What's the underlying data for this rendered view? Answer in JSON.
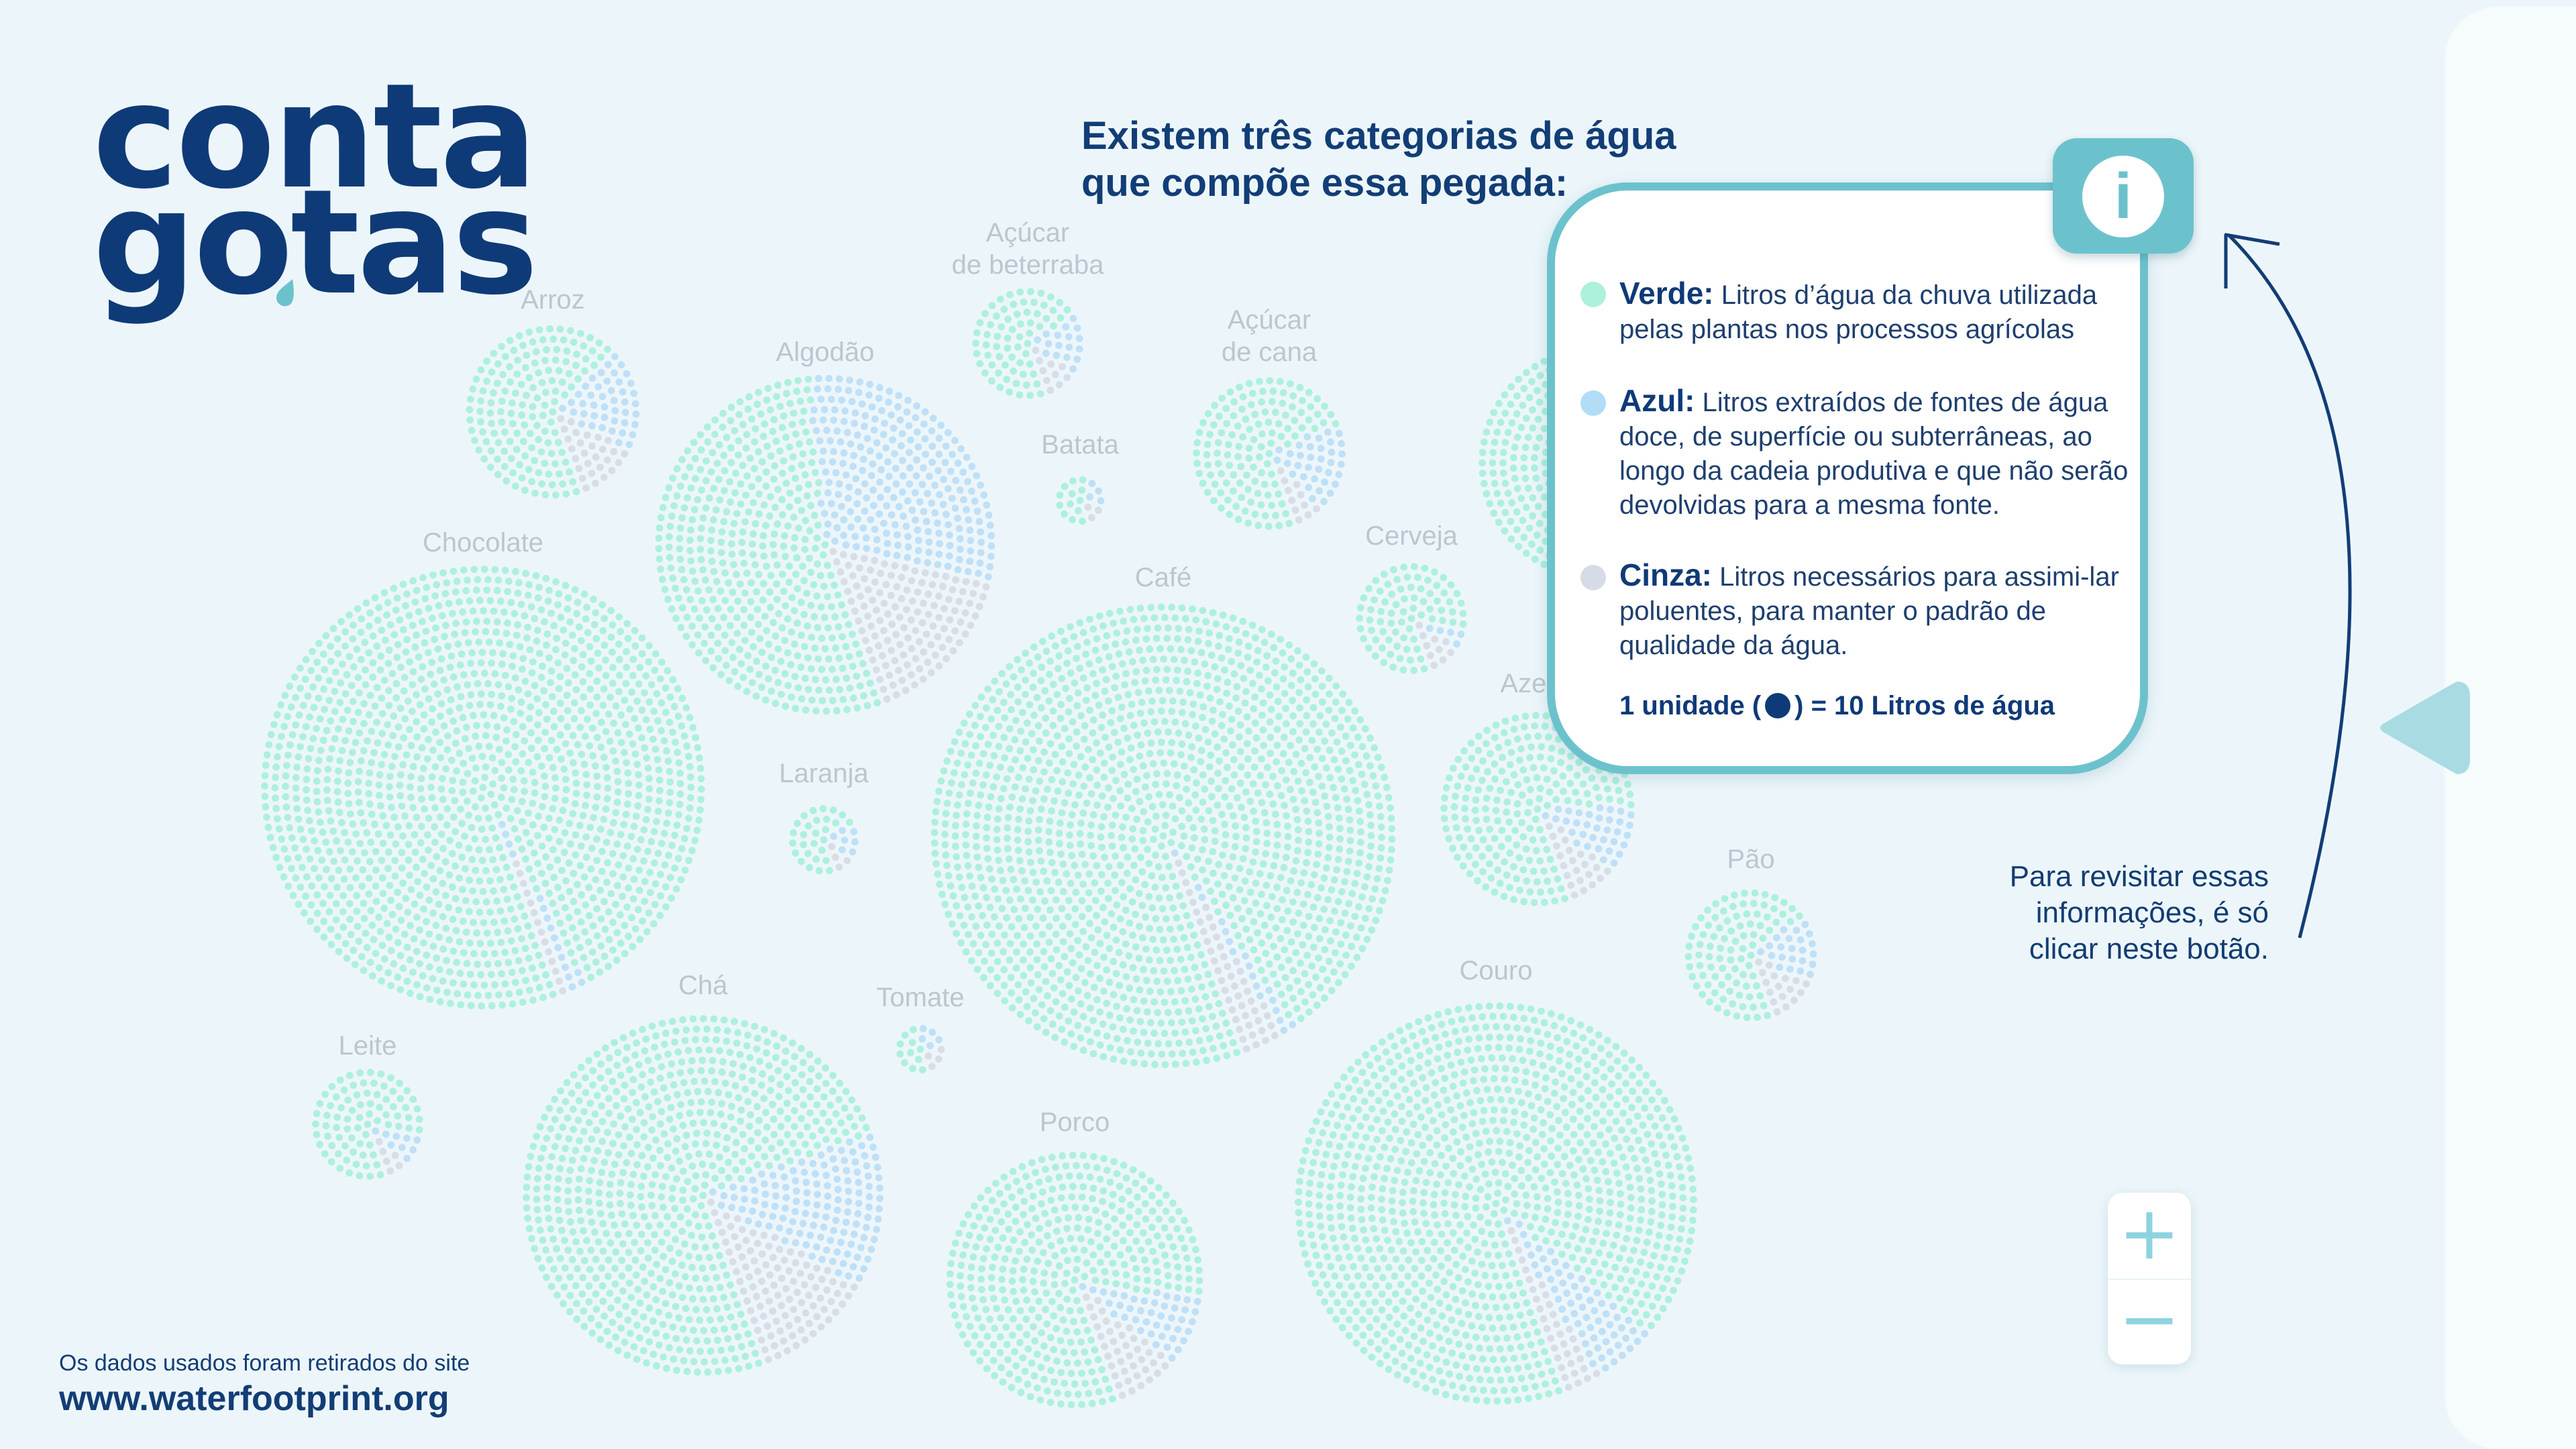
{
  "logo": {
    "line1": "conta",
    "line2": "gotas"
  },
  "heading": {
    "line1": "Existem três categorias de água",
    "line2": "que compõe essa pegada:"
  },
  "colors": {
    "verde": "#aef0dd",
    "azul": "#bfe0f6",
    "cinza": "#d8dde6",
    "accent": "#6cc2cc",
    "navy": "#0f3a78"
  },
  "chart_data": {
    "type": "pie",
    "unit_label": "1 unidade ( ) = 10 Litros de água",
    "categories": [
      "Verde",
      "Azul",
      "Cinza"
    ],
    "items": [
      {
        "name": "Arroz",
        "label_lines": [
          "Arroz"
        ],
        "verde": 0.68,
        "azul": 0.2,
        "cinza": 0.12
      },
      {
        "name": "Algodão",
        "label_lines": [
          "Algodão"
        ],
        "verde": 0.54,
        "azul": 0.3,
        "cinza": 0.16
      },
      {
        "name": "Açúcar de beterraba",
        "label_lines": [
          "Açúcar",
          "de beterraba"
        ],
        "verde": 0.72,
        "azul": 0.18,
        "cinza": 0.1
      },
      {
        "name": "Açúcar de cana",
        "label_lines": [
          "Açúcar",
          "de cana"
        ],
        "verde": 0.74,
        "azul": 0.2,
        "cinza": 0.06
      },
      {
        "name": "Batata",
        "label_lines": [
          "Batata"
        ],
        "verde": 0.65,
        "azul": 0.18,
        "cinza": 0.17
      },
      {
        "name": "Chocolate",
        "label_lines": [
          "Chocolate"
        ],
        "verde": 0.98,
        "azul": 0.01,
        "cinza": 0.01
      },
      {
        "name": "Café",
        "label_lines": [
          "Café"
        ],
        "verde": 0.96,
        "azul": 0.01,
        "cinza": 0.03
      },
      {
        "name": "Cerveja",
        "label_lines": [
          "Cerveja"
        ],
        "verde": 0.84,
        "azul": 0.06,
        "cinza": 0.1
      },
      {
        "name": "Azeite",
        "label_lines": [
          "Azeite"
        ],
        "verde": 0.8,
        "azul": 0.12,
        "cinza": 0.08
      },
      {
        "name": "Laranja",
        "label_lines": [
          "Laranja"
        ],
        "verde": 0.72,
        "azul": 0.18,
        "cinza": 0.1
      },
      {
        "name": "Pão",
        "label_lines": [
          "Pão"
        ],
        "verde": 0.7,
        "azul": 0.18,
        "cinza": 0.12
      },
      {
        "name": "Leite",
        "label_lines": [
          "Leite"
        ],
        "verde": 0.85,
        "azul": 0.08,
        "cinza": 0.07
      },
      {
        "name": "Chá",
        "label_lines": [
          "Chá"
        ],
        "verde": 0.75,
        "azul": 0.14,
        "cinza": 0.11
      },
      {
        "name": "Tomate",
        "label_lines": [
          "Tomate"
        ],
        "verde": 0.52,
        "azul": 0.26,
        "cinza": 0.22
      },
      {
        "name": "Porco",
        "label_lines": [
          "Porco"
        ],
        "verde": 0.83,
        "azul": 0.09,
        "cinza": 0.08
      },
      {
        "name": "Couro",
        "label_lines": [
          "Couro"
        ],
        "verde": 0.92,
        "azul": 0.05,
        "cinza": 0.03
      }
    ]
  },
  "info": {
    "button_label": "i",
    "items": [
      {
        "name": "verde",
        "title": "Verde:",
        "text": "Litros d’água da chuva utilizada pelas plantas nos processos agrícolas"
      },
      {
        "name": "azul",
        "title": "Azul:",
        "text": "Litros extraídos de fontes de água doce, de superfície ou subterrâneas, ao longo da cadeia produtiva e que não serão devolvidas para a mesma fonte."
      },
      {
        "name": "cinza",
        "title": "Cinza:",
        "text": "Litros necessários para assimi-lar poluentes, para manter o padrão de qualidade da água."
      }
    ],
    "unit_prefix": "1 unidade (",
    "unit_suffix": ") = 10 Litros de água"
  },
  "hint": {
    "line1": "Para revisitar essas",
    "line2": "informações, é só",
    "line3": "clicar neste botão."
  },
  "zoom": {
    "in_label": "+",
    "out_label": "−"
  },
  "source": {
    "label": "Os dados usados foram retirados do site",
    "url": "www.waterfootprint.org"
  }
}
